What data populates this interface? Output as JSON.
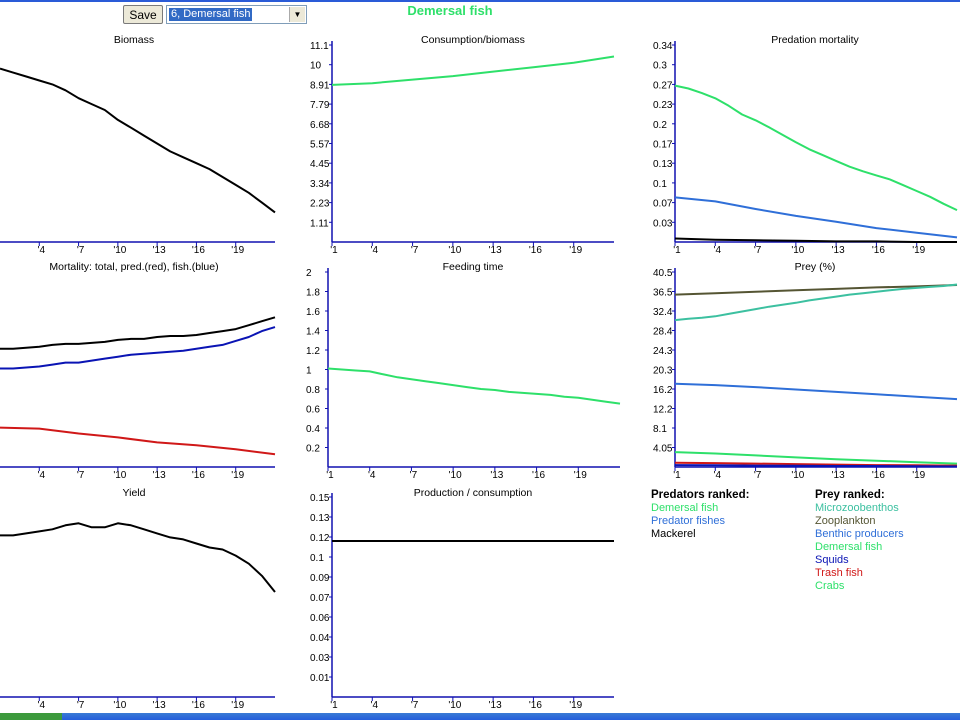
{
  "toolbar": {
    "save_label": "Save",
    "group_selected": "6, Demersal fish",
    "group_title": "Demersal fish"
  },
  "colors": {
    "green": "#2ee06a",
    "blue": "#2f6fd8",
    "navy": "#0a14b4",
    "red": "#d01818",
    "black": "#000000",
    "olive": "#555533",
    "teal": "#3cc0a0",
    "dark_green": "#3a7a3a"
  },
  "legend": {
    "predators_header": "Predators ranked:",
    "predators": [
      "Demersal fish",
      "Predator fishes",
      "Mackerel"
    ],
    "prey_header": "Prey ranked:",
    "prey": [
      "Microzoobenthos",
      "Zooplankton",
      "Benthic producers",
      "Demersal fish",
      "Squids",
      "Trash fish",
      "Crabs"
    ]
  },
  "chart_data": [
    {
      "id": "biomass",
      "type": "line",
      "title": "Biomass",
      "x_ticks": [
        "'4",
        "'7",
        "'10",
        "'13",
        "'16",
        "'19"
      ],
      "y_ticks": [],
      "xlim": [
        1,
        22
      ],
      "ylim": [
        0,
        1
      ],
      "series": [
        {
          "color": "#000000",
          "x": [
            1,
            2,
            3,
            4,
            5,
            6,
            7,
            8,
            9,
            10,
            11,
            12,
            13,
            14,
            15,
            16,
            17,
            18,
            19,
            20,
            21,
            22
          ],
          "y": [
            0.88,
            0.86,
            0.84,
            0.82,
            0.8,
            0.77,
            0.73,
            0.7,
            0.67,
            0.62,
            0.58,
            0.54,
            0.5,
            0.46,
            0.43,
            0.4,
            0.37,
            0.33,
            0.29,
            0.25,
            0.2,
            0.15
          ]
        }
      ]
    },
    {
      "id": "consumption",
      "type": "line",
      "title": "Consumption/biomass",
      "x_ticks": [
        "'1",
        "'4",
        "'7",
        "'10",
        "'13",
        "'16",
        "'19"
      ],
      "y_ticks": [
        "1.11",
        "2.23",
        "3.34",
        "4.45",
        "5.57",
        "6.68",
        "7.79",
        "8.91",
        "10",
        "11.1"
      ],
      "xlim": [
        1,
        22
      ],
      "ylim": [
        0,
        11.1
      ],
      "series": [
        {
          "color": "#2ee06a",
          "x": [
            1,
            4,
            7,
            10,
            13,
            16,
            19,
            22
          ],
          "y": [
            8.85,
            8.95,
            9.15,
            9.35,
            9.6,
            9.85,
            10.1,
            10.45
          ]
        }
      ]
    },
    {
      "id": "predation",
      "type": "line",
      "title": "Predation mortality",
      "x_ticks": [
        "'1",
        "'4",
        "'7",
        "'10",
        "'13",
        "'16",
        "'19"
      ],
      "y_ticks": [
        "0.03",
        "0.07",
        "0.1",
        "0.13",
        "0.17",
        "0.2",
        "0.23",
        "0.27",
        "0.3",
        "0.34"
      ],
      "xlim": [
        1,
        22
      ],
      "ylim": [
        0,
        0.34
      ],
      "series": [
        {
          "color": "#2ee06a",
          "x": [
            1,
            2,
            3,
            4,
            5,
            6,
            7,
            8,
            9,
            10,
            11,
            12,
            13,
            14,
            15,
            16,
            17,
            18,
            19,
            20,
            21,
            22
          ],
          "y": [
            0.27,
            0.265,
            0.257,
            0.248,
            0.235,
            0.22,
            0.21,
            0.198,
            0.185,
            0.172,
            0.16,
            0.15,
            0.14,
            0.13,
            0.122,
            0.115,
            0.108,
            0.098,
            0.088,
            0.078,
            0.066,
            0.055
          ]
        },
        {
          "color": "#2f6fd8",
          "x": [
            1,
            4,
            7,
            10,
            13,
            16,
            19,
            22
          ],
          "y": [
            0.077,
            0.07,
            0.057,
            0.045,
            0.035,
            0.024,
            0.016,
            0.008
          ]
        },
        {
          "color": "#000000",
          "x": [
            1,
            4,
            7,
            10,
            13,
            16,
            19,
            22
          ],
          "y": [
            0.006,
            0.004,
            0.003,
            0.002,
            0.001,
            0.001,
            0.0,
            0.0
          ]
        }
      ]
    },
    {
      "id": "mortality",
      "type": "line",
      "title": "Mortality: total, pred.(red), fish.(blue)",
      "x_ticks": [
        "'4",
        "'7",
        "'10",
        "'13",
        "'16",
        "'19"
      ],
      "y_ticks": [],
      "xlim": [
        1,
        22
      ],
      "ylim": [
        0,
        1
      ],
      "series": [
        {
          "color": "#000000",
          "x": [
            1,
            2,
            3,
            4,
            5,
            6,
            7,
            8,
            9,
            10,
            11,
            12,
            13,
            14,
            15,
            16,
            17,
            18,
            19,
            20,
            21,
            22
          ],
          "y": [
            0.6,
            0.6,
            0.605,
            0.61,
            0.62,
            0.625,
            0.625,
            0.63,
            0.635,
            0.645,
            0.65,
            0.65,
            0.66,
            0.665,
            0.665,
            0.67,
            0.68,
            0.69,
            0.7,
            0.72,
            0.74,
            0.76
          ]
        },
        {
          "color": "#0a14b4",
          "x": [
            1,
            2,
            3,
            4,
            5,
            6,
            7,
            8,
            9,
            10,
            11,
            12,
            13,
            14,
            15,
            16,
            17,
            18,
            19,
            20,
            21,
            22
          ],
          "y": [
            0.5,
            0.5,
            0.505,
            0.51,
            0.52,
            0.53,
            0.53,
            0.54,
            0.55,
            0.56,
            0.57,
            0.575,
            0.58,
            0.585,
            0.59,
            0.6,
            0.61,
            0.62,
            0.64,
            0.66,
            0.69,
            0.71
          ]
        },
        {
          "color": "#d01818",
          "x": [
            1,
            4,
            7,
            10,
            13,
            16,
            19,
            22
          ],
          "y": [
            0.2,
            0.195,
            0.17,
            0.15,
            0.125,
            0.11,
            0.09,
            0.065
          ]
        }
      ]
    },
    {
      "id": "feeding",
      "type": "line",
      "title": "Feeding time",
      "x_ticks": [
        "'1",
        "'4",
        "'7",
        "'10",
        "'13",
        "'16",
        "'19"
      ],
      "y_ticks": [
        "0.2",
        "0.4",
        "0.6",
        "0.8",
        "1",
        "1.2",
        "1.4",
        "1.6",
        "1.8",
        "2"
      ],
      "xlim": [
        1,
        22
      ],
      "ylim": [
        0,
        2
      ],
      "series": [
        {
          "color": "#2ee06a",
          "x": [
            1,
            2,
            3,
            4,
            5,
            6,
            7,
            8,
            9,
            10,
            11,
            12,
            13,
            14,
            15,
            16,
            17,
            18,
            19,
            20,
            21,
            22
          ],
          "y": [
            1.01,
            1.0,
            0.99,
            0.98,
            0.95,
            0.92,
            0.9,
            0.88,
            0.86,
            0.84,
            0.82,
            0.8,
            0.79,
            0.77,
            0.76,
            0.75,
            0.74,
            0.72,
            0.71,
            0.69,
            0.67,
            0.65
          ]
        }
      ]
    },
    {
      "id": "prey",
      "type": "line",
      "title": "Prey (%)",
      "x_ticks": [
        "'1",
        "'4",
        "'7",
        "'10",
        "'13",
        "'16",
        "'19"
      ],
      "y_ticks": [
        "4.05",
        "8.1",
        "12.2",
        "16.2",
        "20.3",
        "24.3",
        "28.4",
        "32.4",
        "36.5",
        "40.5"
      ],
      "xlim": [
        1,
        22
      ],
      "ylim": [
        0,
        40.5
      ],
      "series": [
        {
          "color": "#555533",
          "x": [
            1,
            4,
            7,
            10,
            13,
            16,
            19,
            22
          ],
          "y": [
            35.8,
            36.1,
            36.4,
            36.7,
            37.0,
            37.3,
            37.5,
            37.8
          ]
        },
        {
          "color": "#3cc0a0",
          "x": [
            1,
            2,
            3,
            4,
            5,
            6,
            7,
            8,
            9,
            10,
            11,
            12,
            13,
            14,
            15,
            16,
            17,
            18,
            19,
            20,
            21,
            22
          ],
          "y": [
            30.5,
            30.8,
            31.0,
            31.3,
            31.8,
            32.3,
            32.8,
            33.3,
            33.7,
            34.1,
            34.6,
            35.0,
            35.4,
            35.8,
            36.1,
            36.4,
            36.7,
            37.0,
            37.2,
            37.4,
            37.6,
            37.9
          ]
        },
        {
          "color": "#2f6fd8",
          "x": [
            1,
            4,
            7,
            10,
            13,
            16,
            19,
            22
          ],
          "y": [
            17.3,
            17.0,
            16.6,
            16.1,
            15.6,
            15.1,
            14.6,
            14.1
          ]
        },
        {
          "color": "#2ee06a",
          "x": [
            1,
            4,
            7,
            10,
            13,
            16,
            19,
            22
          ],
          "y": [
            3.1,
            2.8,
            2.4,
            2.0,
            1.6,
            1.3,
            1.0,
            0.7
          ]
        },
        {
          "color": "#d01818",
          "x": [
            1,
            4,
            7,
            10,
            13,
            16,
            19,
            22
          ],
          "y": [
            0.9,
            0.8,
            0.7,
            0.6,
            0.5,
            0.4,
            0.35,
            0.3
          ]
        },
        {
          "color": "#0a14b4",
          "x": [
            1,
            4,
            7,
            10,
            13,
            16,
            19,
            22
          ],
          "y": [
            0.4,
            0.35,
            0.3,
            0.25,
            0.2,
            0.2,
            0.15,
            0.1
          ]
        }
      ]
    },
    {
      "id": "yield",
      "type": "line",
      "title": "Yield",
      "x_ticks": [
        "'4",
        "'7",
        "'10",
        "'13",
        "'16",
        "'19"
      ],
      "y_ticks": [],
      "xlim": [
        1,
        22
      ],
      "ylim": [
        0,
        1
      ],
      "series": [
        {
          "color": "#000000",
          "x": [
            1,
            2,
            3,
            4,
            5,
            6,
            7,
            8,
            9,
            10,
            11,
            12,
            13,
            14,
            15,
            16,
            17,
            18,
            19,
            20,
            21,
            22
          ],
          "y": [
            0.8,
            0.8,
            0.81,
            0.82,
            0.83,
            0.85,
            0.86,
            0.84,
            0.84,
            0.86,
            0.85,
            0.83,
            0.81,
            0.79,
            0.78,
            0.76,
            0.74,
            0.73,
            0.7,
            0.66,
            0.6,
            0.52
          ]
        }
      ]
    },
    {
      "id": "prodcons",
      "type": "line",
      "title": "Production / consumption",
      "x_ticks": [
        "'1",
        "'4",
        "'7",
        "'10",
        "'13",
        "'16",
        "'19"
      ],
      "y_ticks": [
        "0.01",
        "0.03",
        "0.04",
        "0.06",
        "0.07",
        "0.09",
        "0.1",
        "0.12",
        "0.13",
        "0.15"
      ],
      "xlim": [
        1,
        22
      ],
      "ylim": [
        0,
        0.15
      ],
      "series": [
        {
          "color": "#000000",
          "x": [
            1,
            22
          ],
          "y": [
            0.117,
            0.117
          ]
        }
      ]
    }
  ]
}
